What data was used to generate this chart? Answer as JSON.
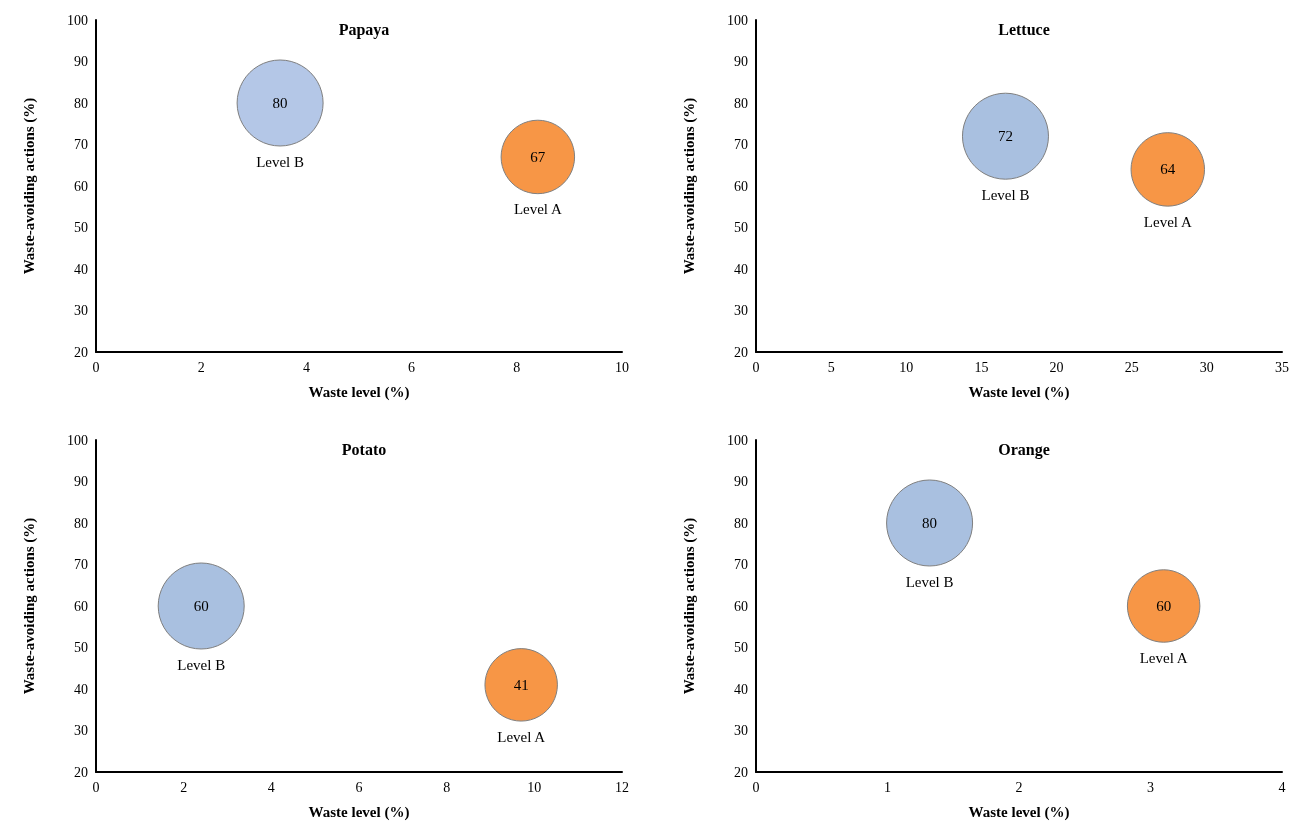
{
  "chart_data": [
    {
      "type": "bubble",
      "title": "Papaya",
      "xlabel": "Waste level (%)",
      "ylabel": "Waste-avoiding actions (%)",
      "xlim": [
        0,
        10
      ],
      "xticks": [
        0,
        2,
        4,
        6,
        8,
        10
      ],
      "ylim": [
        20,
        100
      ],
      "yticks": [
        20,
        30,
        40,
        50,
        60,
        70,
        80,
        90,
        100
      ],
      "data_labels": true,
      "series": [
        {
          "name": "Level B",
          "color": "#b4c7e7",
          "x": [
            3.5
          ],
          "values": [
            80
          ],
          "sizes": [
            1
          ]
        },
        {
          "name": "Level A",
          "color": "#f79646",
          "x": [
            8.4
          ],
          "values": [
            67
          ],
          "sizes": [
            0.73
          ]
        }
      ]
    },
    {
      "type": "bubble",
      "title": "Lettuce",
      "xlabel": "Waste level (%)",
      "ylabel": "Waste-avoiding actions (%)",
      "xlim": [
        0,
        35
      ],
      "xticks": [
        0,
        5,
        10,
        15,
        20,
        25,
        30,
        35
      ],
      "ylim": [
        20,
        100
      ],
      "yticks": [
        20,
        30,
        40,
        50,
        60,
        70,
        80,
        90,
        100
      ],
      "data_labels": true,
      "series": [
        {
          "name": "Level B",
          "color": "#a9c0e0",
          "x": [
            16.6
          ],
          "values": [
            72
          ],
          "sizes": [
            1
          ]
        },
        {
          "name": "Level A",
          "color": "#f79646",
          "x": [
            27.4
          ],
          "values": [
            64
          ],
          "sizes": [
            0.73
          ]
        }
      ]
    },
    {
      "type": "bubble",
      "title": "Potato",
      "xlabel": "Waste level (%)",
      "ylabel": "Waste-avoiding actions (%)",
      "xlim": [
        0,
        12
      ],
      "xticks": [
        0,
        2,
        4,
        6,
        8,
        10,
        12
      ],
      "ylim": [
        20,
        100
      ],
      "yticks": [
        20,
        30,
        40,
        50,
        60,
        70,
        80,
        90,
        100
      ],
      "data_labels": true,
      "series": [
        {
          "name": "Level B",
          "color": "#a9c0e0",
          "x": [
            2.4
          ],
          "values": [
            60
          ],
          "sizes": [
            1
          ]
        },
        {
          "name": "Level A",
          "color": "#f79646",
          "x": [
            9.7
          ],
          "values": [
            41
          ],
          "sizes": [
            0.71
          ]
        }
      ]
    },
    {
      "type": "bubble",
      "title": "Orange",
      "xlabel": "Waste level (%)",
      "ylabel": "Waste-avoiding actions (%)",
      "xlim": [
        0,
        4
      ],
      "xticks": [
        0,
        1,
        2,
        3,
        4
      ],
      "ylim": [
        20,
        100
      ],
      "yticks": [
        20,
        30,
        40,
        50,
        60,
        70,
        80,
        90,
        100
      ],
      "data_labels": true,
      "series": [
        {
          "name": "Level B",
          "color": "#a9c0e0",
          "x": [
            1.32
          ],
          "values": [
            80
          ],
          "sizes": [
            1
          ]
        },
        {
          "name": "Level A",
          "color": "#f79646",
          "x": [
            3.1
          ],
          "values": [
            60
          ],
          "sizes": [
            0.71
          ]
        }
      ]
    }
  ]
}
